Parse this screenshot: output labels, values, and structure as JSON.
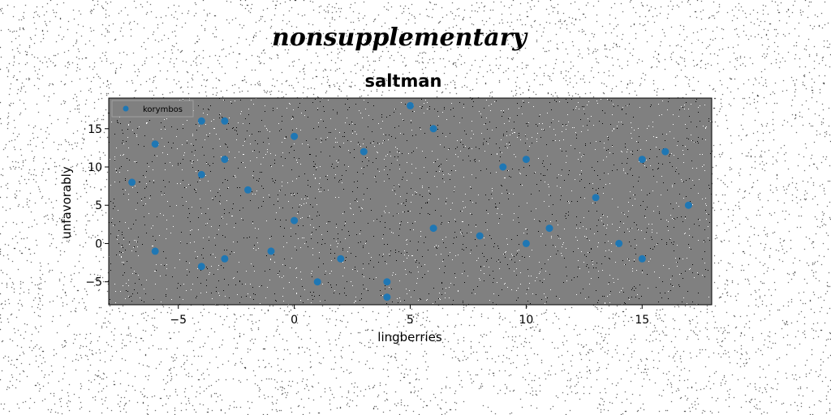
{
  "chart_data": {
    "type": "scatter",
    "suptitle": "nonsupplementary",
    "title": "saltman",
    "xlabel": "lingberries",
    "ylabel": "unfavorably",
    "xlim": [
      -8,
      18
    ],
    "ylim": [
      -8,
      19
    ],
    "xticks": [
      -5,
      0,
      5,
      10,
      15
    ],
    "yticks": [
      -5,
      0,
      5,
      10,
      15
    ],
    "grid": false,
    "legend_position": "top-left",
    "series": [
      {
        "name": "korymbos",
        "color": "#1f77b4",
        "points": [
          {
            "x": -7,
            "y": 8
          },
          {
            "x": -6,
            "y": 13
          },
          {
            "x": -6,
            "y": -1
          },
          {
            "x": -4,
            "y": 16
          },
          {
            "x": -4,
            "y": 9
          },
          {
            "x": -4,
            "y": -3
          },
          {
            "x": -3,
            "y": 16
          },
          {
            "x": -3,
            "y": 11
          },
          {
            "x": -3,
            "y": -2
          },
          {
            "x": -2,
            "y": 7
          },
          {
            "x": -1,
            "y": -1
          },
          {
            "x": 0,
            "y": 14
          },
          {
            "x": 0,
            "y": 3
          },
          {
            "x": 1,
            "y": -5
          },
          {
            "x": 2,
            "y": -2
          },
          {
            "x": 3,
            "y": 12
          },
          {
            "x": 4,
            "y": -5
          },
          {
            "x": 4,
            "y": -7
          },
          {
            "x": 5,
            "y": 18
          },
          {
            "x": 6,
            "y": 15
          },
          {
            "x": 6,
            "y": 2
          },
          {
            "x": 8,
            "y": 1
          },
          {
            "x": 9,
            "y": 10
          },
          {
            "x": 10,
            "y": 11
          },
          {
            "x": 10,
            "y": 0
          },
          {
            "x": 11,
            "y": 2
          },
          {
            "x": 13,
            "y": 6
          },
          {
            "x": 14,
            "y": 0
          },
          {
            "x": 15,
            "y": 11
          },
          {
            "x": 15,
            "y": -2
          },
          {
            "x": 16,
            "y": 12
          },
          {
            "x": 17,
            "y": 5
          }
        ]
      }
    ],
    "colors": {
      "plot_background": "#808080",
      "figure_background": "#ffffff",
      "marker": "#1f77b4"
    }
  }
}
